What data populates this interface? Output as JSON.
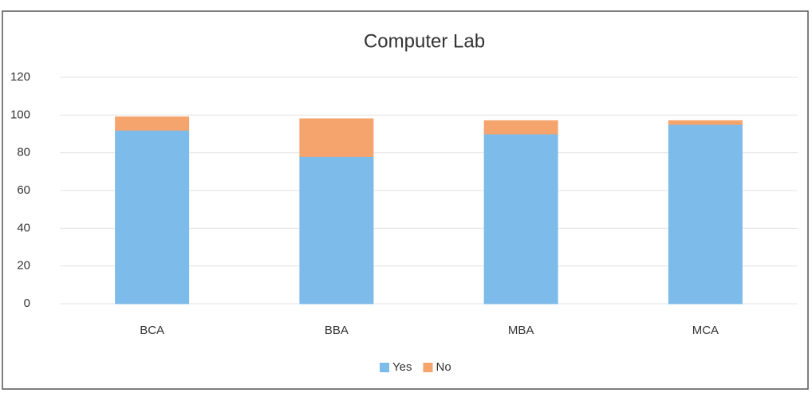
{
  "chart_data": {
    "type": "bar",
    "stacked": true,
    "title": "Computer Lab",
    "categories": [
      "BCA",
      "BBA",
      "MBA",
      "MCA"
    ],
    "series": [
      {
        "name": "Yes",
        "color": "#7dbbea",
        "values": [
          92,
          78,
          90,
          95
        ]
      },
      {
        "name": "No",
        "color": "#f5a46e",
        "values": [
          7,
          20,
          7,
          2
        ]
      }
    ],
    "ylim": [
      0,
      120
    ],
    "yticks": [
      0,
      20,
      40,
      60,
      80,
      100,
      120
    ],
    "grid": true,
    "legend": "bottom"
  }
}
